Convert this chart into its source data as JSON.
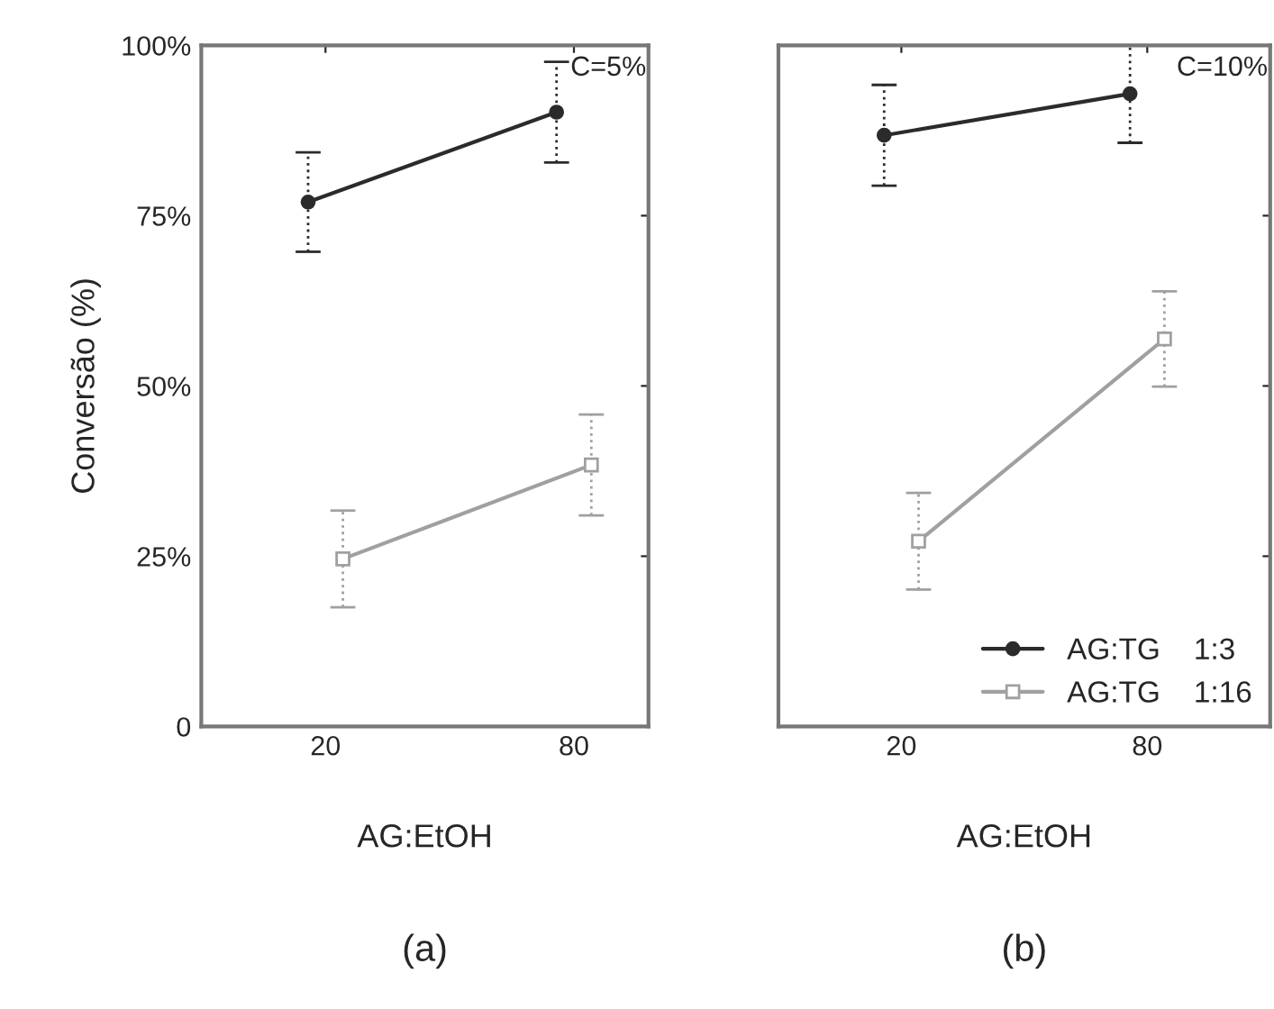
{
  "chart_data": [
    {
      "type": "line",
      "categories": [
        "20",
        "80"
      ],
      "xlabel": "AG:EtOH",
      "ylabel": "Conversão (%)",
      "ylim": [
        0,
        100
      ],
      "yticks": [
        0,
        {
          "value": 25,
          "label": "25%"
        },
        {
          "value": 50,
          "label": "50%"
        },
        {
          "value": 75,
          "label": "75%"
        },
        {
          "value": 100,
          "label": "100%"
        }
      ],
      "series": [
        {
          "color": "#2b2b2b",
          "marker": "circle",
          "values": [
            77.0,
            90.2
          ],
          "errors": [
            7.3,
            7.4
          ]
        },
        {
          "color": "#a0a0a0",
          "marker": "square",
          "values": [
            24.6,
            38.4
          ],
          "errors": [
            7.1,
            7.4
          ]
        }
      ],
      "annotations": [
        "C=5%",
        "(a)"
      ],
      "grid": false,
      "legend": false
    },
    {
      "type": "line",
      "categories": [
        "20",
        "80"
      ],
      "xlabel": "AG:EtOH",
      "ylim": [
        0,
        100
      ],
      "yticks": [
        0,
        25,
        50,
        75,
        100
      ],
      "tick_labels": "x",
      "series": [
        {
          "name": "AG:TG    1:3",
          "color": "#2b2b2b",
          "marker": "circle",
          "values": [
            86.8,
            92.9
          ],
          "errors": [
            7.4,
            7.2
          ]
        },
        {
          "name": "AG:TG    1:16",
          "color": "#a0a0a0",
          "marker": "square",
          "values": [
            27.2,
            56.9
          ],
          "errors": [
            7.1,
            7.0
          ]
        }
      ],
      "annotations": [
        "C=10%",
        "(b)"
      ],
      "grid": false,
      "legend": "bottom right"
    }
  ]
}
